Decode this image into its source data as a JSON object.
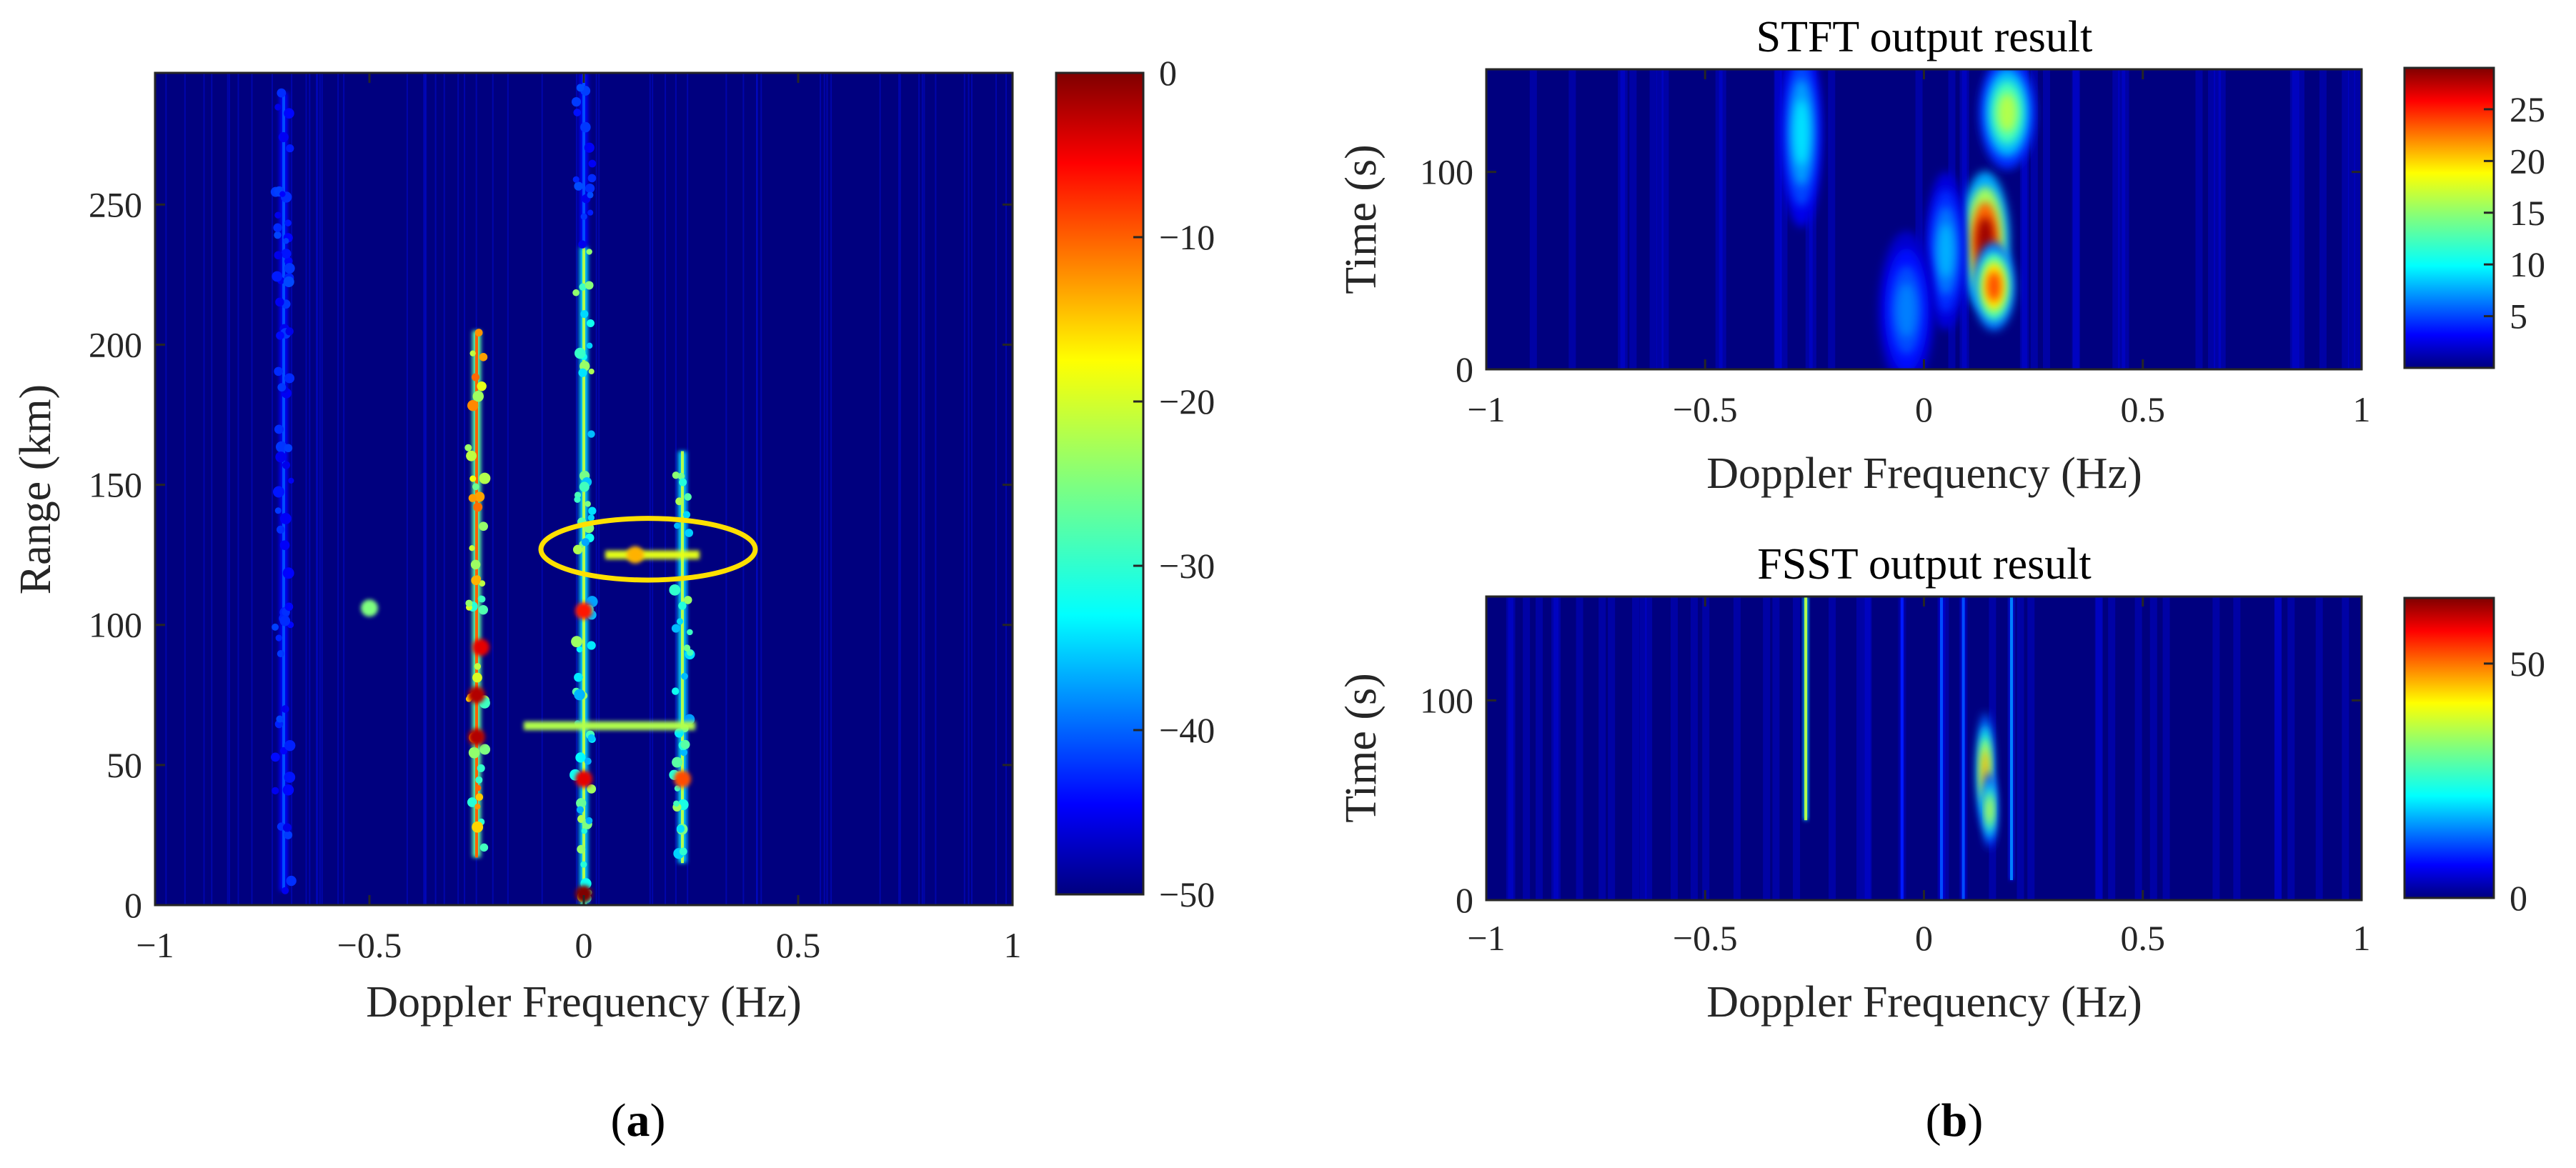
{
  "colors": {
    "background": "#00007f",
    "ellipse": "#ffe000",
    "jet": [
      "#00007f",
      "#0000ff",
      "#007fff",
      "#00ffff",
      "#7fff7f",
      "#ffff00",
      "#ff7f00",
      "#ff0000",
      "#7f0000"
    ]
  },
  "panels": {
    "a": "a",
    "b": "b"
  },
  "chart_data": [
    {
      "id": "range-doppler",
      "type": "heatmap",
      "title": "",
      "xlabel": "Doppler Frequency (Hz)",
      "ylabel": "Range (km)",
      "xlim": [
        -1,
        1
      ],
      "ylim": [
        0,
        297
      ],
      "xticks": [
        -1,
        -0.5,
        0,
        0.5,
        1
      ],
      "xtick_labels": [
        "−1",
        "−0.5",
        "0",
        "0.5",
        "1"
      ],
      "yticks": [
        0,
        50,
        100,
        150,
        200,
        250
      ],
      "ytick_labels": [
        "0",
        "50",
        "100",
        "150",
        "200",
        "250"
      ],
      "colorbar": {
        "range": [
          -50,
          0
        ],
        "ticks": [
          0,
          -10,
          -20,
          -30,
          -40,
          -50
        ],
        "tick_labels": [
          "0",
          "−10",
          "−20",
          "−30",
          "−40",
          "−50"
        ]
      },
      "features": [
        {
          "kind": "vline",
          "x": -0.25,
          "y": [
            17,
            205
          ],
          "level": 0.78
        },
        {
          "kind": "vline",
          "x": 0.0,
          "y": [
            0,
            235
          ],
          "level": 0.55
        },
        {
          "kind": "vline",
          "x": 0.23,
          "y": [
            15,
            162
          ],
          "level": 0.55
        },
        {
          "kind": "vline",
          "x": -0.7,
          "y": [
            5,
            290
          ],
          "level": 0.2
        },
        {
          "kind": "vline",
          "x": 0.0,
          "y": [
            235,
            297
          ],
          "level": 0.2
        },
        {
          "kind": "hline",
          "y": 64,
          "x": [
            -0.14,
            0.26
          ],
          "level": 0.55
        },
        {
          "kind": "hline",
          "y": 125,
          "x": [
            0.05,
            0.27
          ],
          "level": 0.6
        },
        {
          "kind": "spot",
          "x": -0.5,
          "y": 106,
          "level": 0.5
        },
        {
          "kind": "spot",
          "x": -0.25,
          "y": 60,
          "level": 0.95
        },
        {
          "kind": "spot",
          "x": -0.25,
          "y": 75,
          "level": 0.95
        },
        {
          "kind": "spot",
          "x": -0.24,
          "y": 92,
          "level": 0.9
        },
        {
          "kind": "spot",
          "x": 0.0,
          "y": 45,
          "level": 0.9
        },
        {
          "kind": "spot",
          "x": 0.0,
          "y": 4,
          "level": 1.0
        },
        {
          "kind": "spot",
          "x": 0.0,
          "y": 105,
          "level": 0.85
        },
        {
          "kind": "spot",
          "x": 0.12,
          "y": 125,
          "level": 0.7
        },
        {
          "kind": "spot",
          "x": 0.23,
          "y": 45,
          "level": 0.8
        }
      ],
      "annotation": {
        "shape": "ellipse",
        "cx": 0.15,
        "cy": 127,
        "rx": 0.25,
        "ry": 11
      }
    },
    {
      "id": "stft",
      "type": "heatmap",
      "title": "STFT output result",
      "xlabel": "Doppler Frequency (Hz)",
      "ylabel": "Time (s)",
      "xlim": [
        -1,
        1
      ],
      "ylim": [
        0,
        152
      ],
      "xticks": [
        -1,
        -0.5,
        0,
        0.5,
        1
      ],
      "xtick_labels": [
        "−1",
        "−0.5",
        "0",
        "0.5",
        "1"
      ],
      "yticks": [
        0,
        100
      ],
      "ytick_labels": [
        "0",
        "100"
      ],
      "colorbar": {
        "range": [
          0,
          29
        ],
        "ticks": [
          25,
          20,
          15,
          10,
          5
        ],
        "tick_labels": [
          "25",
          "20",
          "15",
          "10",
          "5"
        ]
      },
      "features": [
        {
          "kind": "blob",
          "x": 0.14,
          "y": 65,
          "sx": 0.035,
          "sy": 22,
          "level": 0.97
        },
        {
          "kind": "blob",
          "x": 0.16,
          "y": 42,
          "sx": 0.03,
          "sy": 14,
          "level": 0.8
        },
        {
          "kind": "blob",
          "x": 0.19,
          "y": 130,
          "sx": 0.04,
          "sy": 18,
          "level": 0.55
        },
        {
          "kind": "blob",
          "x": -0.28,
          "y": 120,
          "sx": 0.03,
          "sy": 30,
          "level": 0.35
        },
        {
          "kind": "blob",
          "x": 0.05,
          "y": 60,
          "sx": 0.03,
          "sy": 25,
          "level": 0.3
        },
        {
          "kind": "blob",
          "x": -0.04,
          "y": 30,
          "sx": 0.04,
          "sy": 25,
          "level": 0.25
        }
      ]
    },
    {
      "id": "fsst",
      "type": "heatmap",
      "title": "FSST output result",
      "xlabel": "Doppler Frequency (Hz)",
      "ylabel": "Time (s)",
      "xlim": [
        -1,
        1
      ],
      "ylim": [
        0,
        152
      ],
      "xticks": [
        -1,
        -0.5,
        0,
        0.5,
        1
      ],
      "xtick_labels": [
        "−1",
        "−0.5",
        "0",
        "0.5",
        "1"
      ],
      "yticks": [
        0,
        100
      ],
      "ytick_labels": [
        "0",
        "100"
      ],
      "colorbar": {
        "range": [
          0,
          64
        ],
        "ticks": [
          50,
          0
        ],
        "tick_labels": [
          "50",
          "0"
        ]
      },
      "features": [
        {
          "kind": "vline",
          "x": -0.27,
          "y": [
            40,
            152
          ],
          "level": 0.55
        },
        {
          "kind": "blob",
          "x": 0.14,
          "y": 65,
          "sx": 0.012,
          "sy": 18,
          "level": 0.72
        },
        {
          "kind": "blob",
          "x": 0.15,
          "y": 45,
          "sx": 0.01,
          "sy": 12,
          "level": 0.6
        },
        {
          "kind": "vline",
          "x": 0.04,
          "y": [
            0,
            152
          ],
          "level": 0.2
        },
        {
          "kind": "vline",
          "x": 0.09,
          "y": [
            0,
            152
          ],
          "level": 0.2
        },
        {
          "kind": "vline",
          "x": 0.2,
          "y": [
            10,
            152
          ],
          "level": 0.25
        },
        {
          "kind": "vline",
          "x": -0.05,
          "y": [
            0,
            152
          ],
          "level": 0.15
        }
      ]
    }
  ]
}
